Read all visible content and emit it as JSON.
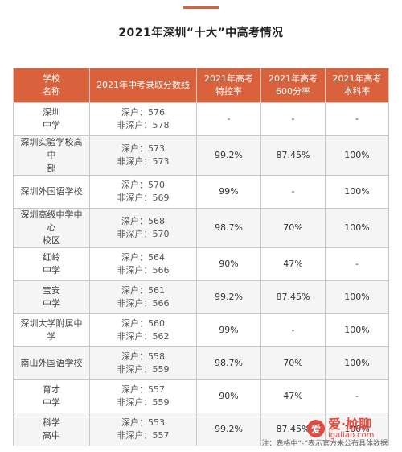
{
  "title": "2021年深圳“十大”中高考情况",
  "headers": [
    [
      "学校",
      "名称"
    ],
    [
      "2021年中考录取分数线"
    ],
    [
      "2021年高考",
      "特控率"
    ],
    [
      "2021年高考",
      "600分率"
    ],
    [
      "2021年高考",
      "本科率"
    ]
  ],
  "rows": [
    {
      "name": [
        "深圳",
        "中学"
      ],
      "score": [
        "深户：576",
        "非深户：578"
      ],
      "tekong": "-",
      "r600": "-",
      "benke": "-"
    },
    {
      "name": [
        "深圳实验学校高中",
        "部"
      ],
      "score": [
        "深户：573",
        "非深户：573"
      ],
      "tekong": "99.2%",
      "r600": "87.45%",
      "benke": "100%"
    },
    {
      "name": [
        "深圳外国语学校"
      ],
      "score": [
        "深户：570",
        "非深户：569"
      ],
      "tekong": "99%",
      "r600": "-",
      "benke": "100%"
    },
    {
      "name": [
        "深圳高级中学中心",
        "校区"
      ],
      "score": [
        "深户：568",
        "非深户：570"
      ],
      "tekong": "98.7%",
      "r600": "70%",
      "benke": "100%"
    },
    {
      "name": [
        "红岭",
        "中学"
      ],
      "score": [
        "深户：564",
        "非深户：566"
      ],
      "tekong": "90%",
      "r600": "47%",
      "benke": "-"
    },
    {
      "name": [
        "宝安",
        "中学"
      ],
      "score": [
        "深户：561",
        "非深户：566"
      ],
      "tekong": "99.2%",
      "r600": "87.45%",
      "benke": "100%"
    },
    {
      "name": [
        "深圳大学附属中学"
      ],
      "score": [
        "深户：560",
        "非深户：562"
      ],
      "tekong": "99%",
      "r600": "-",
      "benke": "100%"
    },
    {
      "name": [
        "南山外国语学校"
      ],
      "score": [
        "深户：558",
        "非深户：559"
      ],
      "tekong": "98.7%",
      "r600": "70%",
      "benke": "100%"
    },
    {
      "name": [
        "育才",
        "中学"
      ],
      "score": [
        "深户：557",
        "非深户：559"
      ],
      "tekong": "90%",
      "r600": "47%",
      "benke": "-"
    },
    {
      "name": [
        "科学",
        "高中"
      ],
      "score": [
        "深户：553",
        "非深户：557"
      ],
      "tekong": "99.2%",
      "r600": "87.45%",
      "benke": "100%"
    }
  ],
  "note": "注：表格中“-”表示官方未公布具体数据",
  "watermark": {
    "cn": "爱·尬聊",
    "url": "igaliao.com",
    "logo": "爱"
  },
  "colors": {
    "accent": "#d9623c",
    "stripe": "#f5f5f5",
    "watermark": "#e4493d"
  }
}
